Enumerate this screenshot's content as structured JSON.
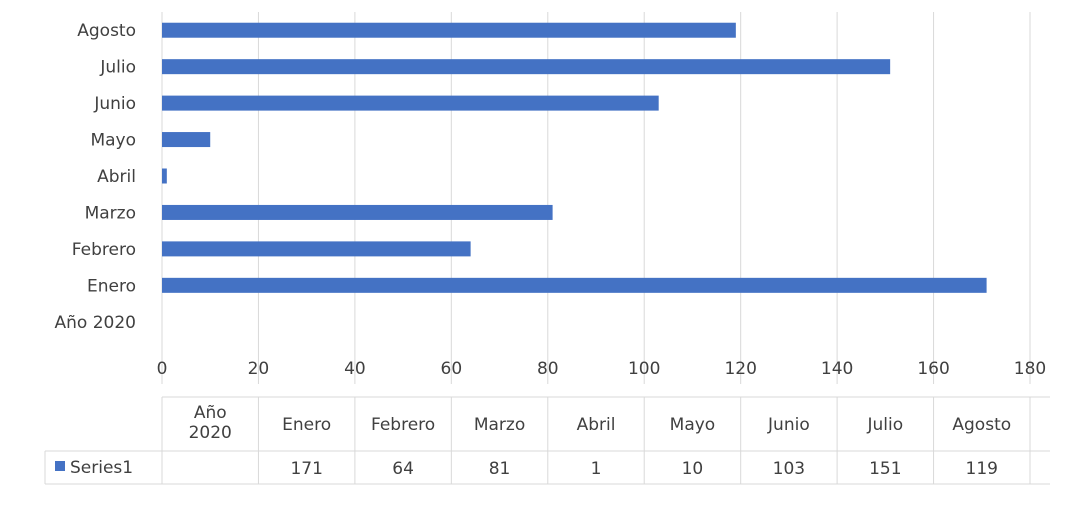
{
  "chart_data": {
    "type": "bar",
    "orientation": "horizontal",
    "title": "",
    "categories": [
      "Año 2020",
      "Enero",
      "Febrero",
      "Marzo",
      "Abril",
      "Mayo",
      "Junio",
      "Julio",
      "Agosto"
    ],
    "series": [
      {
        "name": "Series1",
        "values": [
          null,
          171,
          64,
          81,
          1,
          10,
          103,
          151,
          119
        ],
        "color": "#4472C4"
      }
    ],
    "xlim": [
      0,
      180
    ],
    "x_ticks": [
      0,
      20,
      40,
      60,
      80,
      100,
      120,
      140,
      160,
      180
    ],
    "grid": "vertical",
    "legend": "data-table-left",
    "data_table": {
      "header": [
        "Año\n2020",
        "Enero",
        "Febrero",
        "Marzo",
        "Abril",
        "Mayo",
        "Junio",
        "Julio",
        "Agosto"
      ],
      "row_label": "Series1",
      "row_values": [
        "",
        "171",
        "64",
        "81",
        "1",
        "10",
        "103",
        "151",
        "119"
      ]
    }
  }
}
